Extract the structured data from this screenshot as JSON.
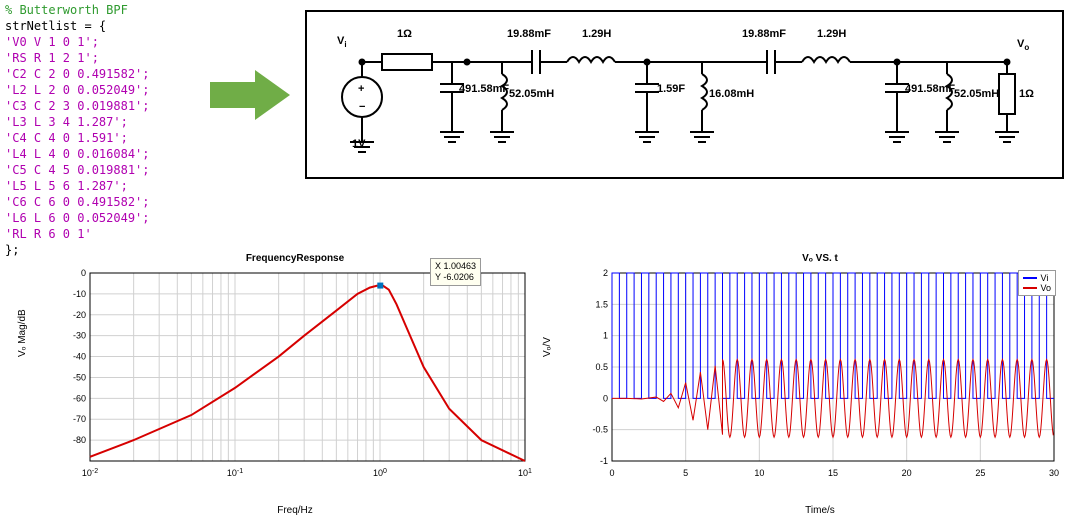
{
  "netlist": {
    "comment_color": "#2e9a2e",
    "keyword_color": "#000000",
    "string_color": "#b000b0",
    "lines": [
      {
        "text": "% Butterworth BPF",
        "color": "#2e9a2e"
      },
      {
        "text": "strNetlist = {",
        "color": "#000000"
      },
      {
        "text": "'V0 V 1 0 1';",
        "color": "#b000b0"
      },
      {
        "text": "'RS R 1 2 1';",
        "color": "#b000b0"
      },
      {
        "text": "'C2 C 2 0 0.491582';",
        "color": "#b000b0"
      },
      {
        "text": "'L2 L 2 0 0.052049';",
        "color": "#b000b0"
      },
      {
        "text": "'C3 C 2 3 0.019881';",
        "color": "#b000b0"
      },
      {
        "text": "'L3 L 3 4 1.287';",
        "color": "#b000b0"
      },
      {
        "text": "'C4 C 4 0 1.591';",
        "color": "#b000b0"
      },
      {
        "text": "'L4 L 4 0 0.016084';",
        "color": "#b000b0"
      },
      {
        "text": "'C5 C 4 5 0.019881';",
        "color": "#b000b0"
      },
      {
        "text": "'L5 L 5 6 1.287';",
        "color": "#b000b0"
      },
      {
        "text": "'C6 C 6 0 0.491582';",
        "color": "#b000b0"
      },
      {
        "text": "'L6 L 6 0 0.052049';",
        "color": "#b000b0"
      },
      {
        "text": "'RL R 6 0 1'",
        "color": "#b000b0"
      },
      {
        "text": "};",
        "color": "#000000"
      }
    ]
  },
  "arrow": {
    "fill": "#70ad47"
  },
  "circuit": {
    "vi": "V",
    "vi_sub": "i",
    "vo": "V",
    "vo_sub": "o",
    "labels": {
      "r1": "1Ω",
      "c3": "19.88mF",
      "l3": "1.29H",
      "c5": "19.88mF",
      "l5": "1.29H",
      "c2": "491.58mF",
      "l2": "52.05mH",
      "c4": "1.59F",
      "l4": "16.08mH",
      "c6": "491.58mF",
      "l6": "52.05mH",
      "rl": "1Ω",
      "vsrc": "1V"
    }
  },
  "freq_plot": {
    "type": "line-logx",
    "title": "FrequencyResponse",
    "xlabel": "Freq/Hz",
    "ylabel": "Vₒ Mag/dB",
    "xlim": [
      0.01,
      10
    ],
    "ylim": [
      -90,
      0
    ],
    "xticks": [
      0.01,
      0.1,
      1,
      10
    ],
    "xticklabels": [
      "10^{-2}",
      "10^{-1}",
      "10^{0}",
      "10^{1}"
    ],
    "yticks": [
      -80,
      -70,
      -60,
      -50,
      -40,
      -30,
      -20,
      -10,
      0
    ],
    "line_color": "#d60000",
    "line_width": 2,
    "grid_color": "#d0d0d0",
    "background_color": "#ffffff",
    "datatip": {
      "x": "X 1.00463",
      "y": "Y -6.0206",
      "marker_color": "#0072bd"
    },
    "series_x": [
      0.01,
      0.02,
      0.05,
      0.1,
      0.2,
      0.3,
      0.5,
      0.7,
      0.85,
      0.95,
      1.0,
      1.05,
      1.15,
      1.3,
      1.5,
      2.0,
      3.0,
      5.0,
      10.0
    ],
    "series_y": [
      -88,
      -80,
      -68,
      -55,
      -40,
      -30,
      -18,
      -10,
      -7,
      -6.1,
      -6.02,
      -6.1,
      -8,
      -15,
      -25,
      -45,
      -65,
      -80,
      -90
    ]
  },
  "time_plot": {
    "type": "line",
    "title": "Vₒ VS. t",
    "xlabel": "Time/s",
    "ylabel": "Vₒ/V",
    "xlim": [
      0,
      30
    ],
    "ylim": [
      -1,
      2
    ],
    "xticks": [
      0,
      5,
      10,
      15,
      20,
      25,
      30
    ],
    "yticks": [
      -1,
      -0.5,
      0,
      0.5,
      1,
      1.5,
      2
    ],
    "grid_color": "#d0d0d0",
    "background_color": "#ffffff",
    "legend": [
      {
        "label": "Vi",
        "color": "#0000ff"
      },
      {
        "label": "Vo",
        "color": "#d60000"
      }
    ],
    "vi": {
      "color": "#0000ff",
      "amplitude": 2.0,
      "baseline": 0.0,
      "freq_hz": 1.0,
      "shape": "square"
    },
    "vo": {
      "color": "#d60000",
      "settle_amp": 0.62,
      "settle_offset": 0.0,
      "freq_hz": 1.0,
      "transient": [
        [
          0,
          0
        ],
        [
          1,
          0
        ],
        [
          2,
          -0.01
        ],
        [
          3,
          0.02
        ],
        [
          3.5,
          -0.05
        ],
        [
          4,
          0.08
        ],
        [
          4.5,
          -0.15
        ],
        [
          5,
          0.25
        ],
        [
          5.5,
          -0.35
        ],
        [
          6,
          0.42
        ],
        [
          6.5,
          -0.5
        ],
        [
          7,
          0.52
        ],
        [
          7.5,
          -0.58
        ]
      ]
    }
  }
}
